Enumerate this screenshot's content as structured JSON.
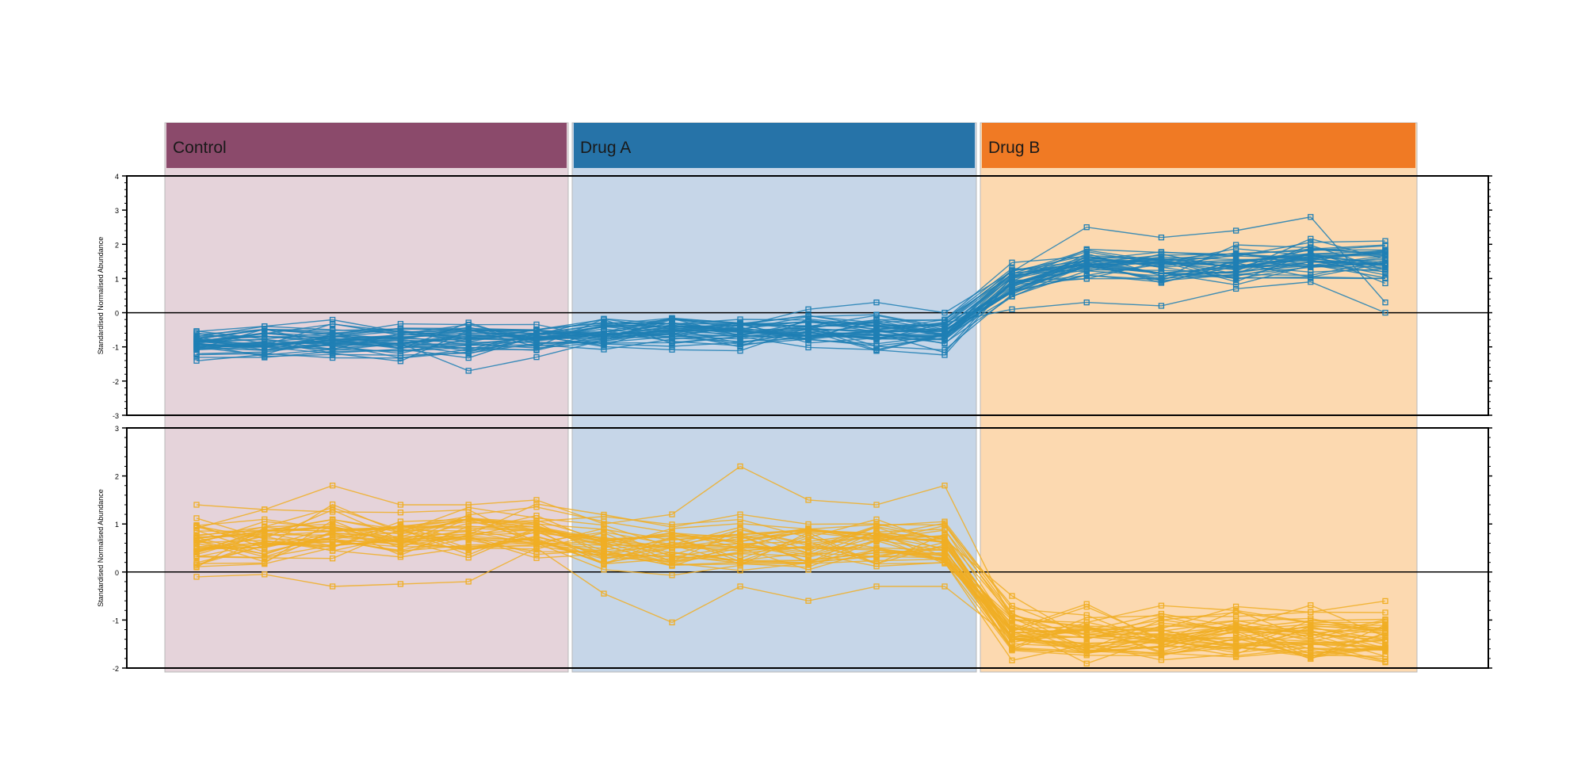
{
  "chart_data": {
    "type": "line",
    "groups": [
      {
        "label": "Control",
        "header_color": "#8b4a6b",
        "bg_color": "#e5d3da"
      },
      {
        "label": "Drug A",
        "header_color": "#2673a8",
        "bg_color": "#c6d6e8"
      },
      {
        "label": "Drug B",
        "header_color": "#f07a24",
        "bg_color": "#fcd9b0"
      }
    ],
    "x_points_per_group": 6,
    "panels": [
      {
        "ylabel": "Standardised Normalised Abundance",
        "ylim": [
          -3,
          4
        ],
        "yticks": [
          "4",
          "3",
          "2",
          "1",
          "0",
          "-1",
          "-2",
          "-3"
        ],
        "line_color": "#1f7fb4",
        "zero_line": true,
        "profile_count": 40,
        "typical_profile": [
          -0.9,
          -0.85,
          -0.8,
          -0.85,
          -0.8,
          -0.8,
          -0.6,
          -0.5,
          -0.6,
          -0.55,
          -0.6,
          -0.6,
          0.9,
          1.4,
          1.3,
          1.4,
          1.5,
          1.5
        ],
        "example_profiles": [
          [
            -1.0,
            -0.9,
            -1.1,
            -0.9,
            -1.7,
            -1.3,
            -0.8,
            -0.2,
            -0.4,
            0.1,
            0.3,
            0.0,
            1.2,
            2.5,
            2.2,
            2.4,
            2.8,
            0.3
          ],
          [
            -0.7,
            -0.4,
            -0.5,
            -0.6,
            -0.5,
            -0.5,
            -0.2,
            -0.9,
            -0.7,
            -0.5,
            -0.8,
            -0.3,
            0.1,
            0.3,
            0.2,
            0.7,
            0.9,
            0.0
          ]
        ]
      },
      {
        "ylabel": "Standardised Normalised Abundance",
        "ylim": [
          -2,
          3
        ],
        "yticks": [
          "3",
          "2",
          "1",
          "0",
          "-1",
          "-2"
        ],
        "line_color": "#f0ae24",
        "zero_line": true,
        "profile_count": 40,
        "typical_profile": [
          0.6,
          0.7,
          0.8,
          0.75,
          0.8,
          0.8,
          0.6,
          0.55,
          0.6,
          0.6,
          0.65,
          0.65,
          -1.2,
          -1.3,
          -1.25,
          -1.3,
          -1.3,
          -1.3
        ],
        "example_profiles": [
          [
            1.4,
            1.3,
            1.8,
            1.4,
            1.4,
            1.5,
            1.0,
            1.2,
            2.2,
            1.5,
            1.4,
            1.8,
            -1.0,
            -1.05,
            -0.7,
            -0.8,
            -1.05,
            -1.05
          ],
          [
            -0.1,
            -0.05,
            -0.3,
            -0.25,
            -0.2,
            0.5,
            -0.45,
            -1.05,
            -0.3,
            -0.6,
            -0.3,
            -0.3,
            -1.4,
            -1.5,
            -1.4,
            -1.55,
            -1.5,
            -1.55
          ]
        ]
      }
    ]
  }
}
